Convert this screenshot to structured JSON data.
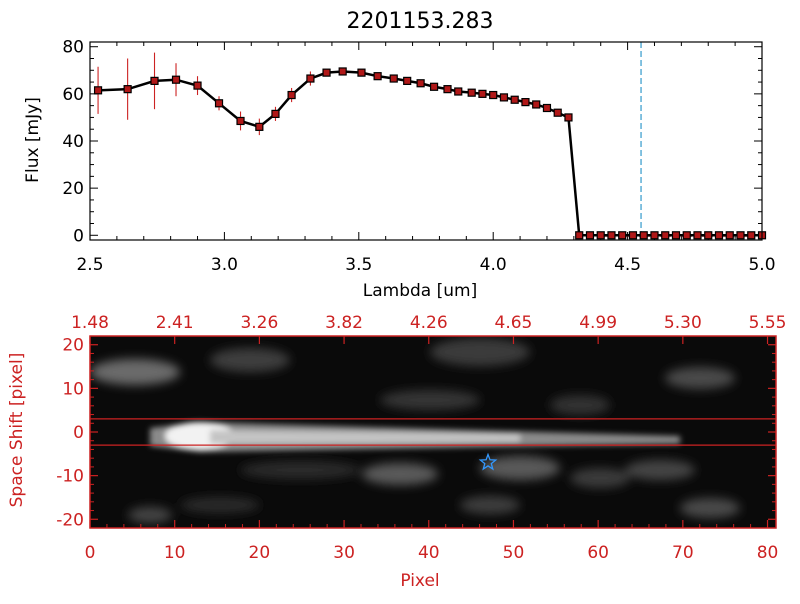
{
  "chart_data": [
    {
      "type": "line",
      "title": "2201153.283",
      "xlabel": "Lambda [um]",
      "ylabel": "Flux [mJy]",
      "xlim": [
        2.5,
        5.0
      ],
      "ylim": [
        -2,
        82
      ],
      "xticks": [
        "2.5",
        "3.0",
        "3.5",
        "4.0",
        "4.5",
        "5.0"
      ],
      "yticks": [
        "0",
        "20",
        "40",
        "60",
        "80"
      ],
      "colors": {
        "line": "#000000",
        "marker": "#b01818",
        "errorbar": "#cc2222",
        "reference_line": "#3399cc"
      },
      "reference_line_x": 4.55,
      "series": [
        {
          "x": [
            2.53,
            2.64,
            2.74,
            2.82,
            2.9,
            2.98,
            3.06,
            3.13,
            3.19,
            3.25,
            3.32,
            3.38,
            3.44,
            3.51,
            3.57,
            3.63,
            3.68,
            3.73,
            3.78,
            3.83,
            3.87,
            3.92,
            3.96,
            4.0,
            4.04,
            4.08,
            4.12,
            4.16,
            4.2,
            4.24,
            4.28,
            4.32,
            4.36,
            4.4,
            4.44,
            4.48,
            4.52,
            4.56,
            4.6,
            4.64,
            4.68,
            4.72,
            4.76,
            4.8,
            4.84,
            4.88,
            4.92,
            4.96,
            5.0
          ],
          "y": [
            61.5,
            62.0,
            65.5,
            66.0,
            63.5,
            56.0,
            48.5,
            46.0,
            51.5,
            59.5,
            66.5,
            69.0,
            69.5,
            69.0,
            67.5,
            66.5,
            65.5,
            64.5,
            63.0,
            62.0,
            61.0,
            60.5,
            60.0,
            59.5,
            58.5,
            57.5,
            56.5,
            55.5,
            54.0,
            52.0,
            50.0,
            0,
            0,
            0,
            0,
            0,
            0,
            0,
            0,
            0,
            0,
            0,
            0,
            0,
            0,
            0,
            0,
            0,
            0
          ],
          "errors": [
            10,
            13,
            12,
            7,
            4,
            3,
            4,
            3.5,
            3,
            3,
            3,
            1.5,
            1,
            1,
            1,
            1,
            1,
            1,
            1,
            1,
            1,
            1,
            1,
            1,
            1,
            1,
            1,
            1,
            1,
            1,
            1,
            0,
            0,
            0,
            0,
            0,
            0,
            0,
            0,
            0,
            0,
            0,
            0,
            0,
            0,
            0,
            0,
            0,
            0
          ]
        }
      ]
    },
    {
      "type": "heatmap",
      "xlabel": "Pixel",
      "ylabel": "Space Shift [pixel]",
      "xlim": [
        0,
        81
      ],
      "ylim": [
        -22,
        22
      ],
      "xticks": [
        "0",
        "10",
        "20",
        "30",
        "40",
        "50",
        "60",
        "70",
        "80"
      ],
      "yticks": [
        "-20",
        "-10",
        "0",
        "10",
        "20"
      ],
      "top_axis_ticks": [
        "1.48",
        "2.41",
        "3.26",
        "3.82",
        "4.26",
        "4.65",
        "4.99",
        "5.30",
        "5.55"
      ],
      "colors": {
        "axis": "#cc2222",
        "marker": "#3399ff",
        "background": "#000000"
      },
      "aperture_lines_y": [
        3,
        -3
      ],
      "star_marker": {
        "x": 47,
        "y": -7
      },
      "colormap": "gray"
    }
  ]
}
